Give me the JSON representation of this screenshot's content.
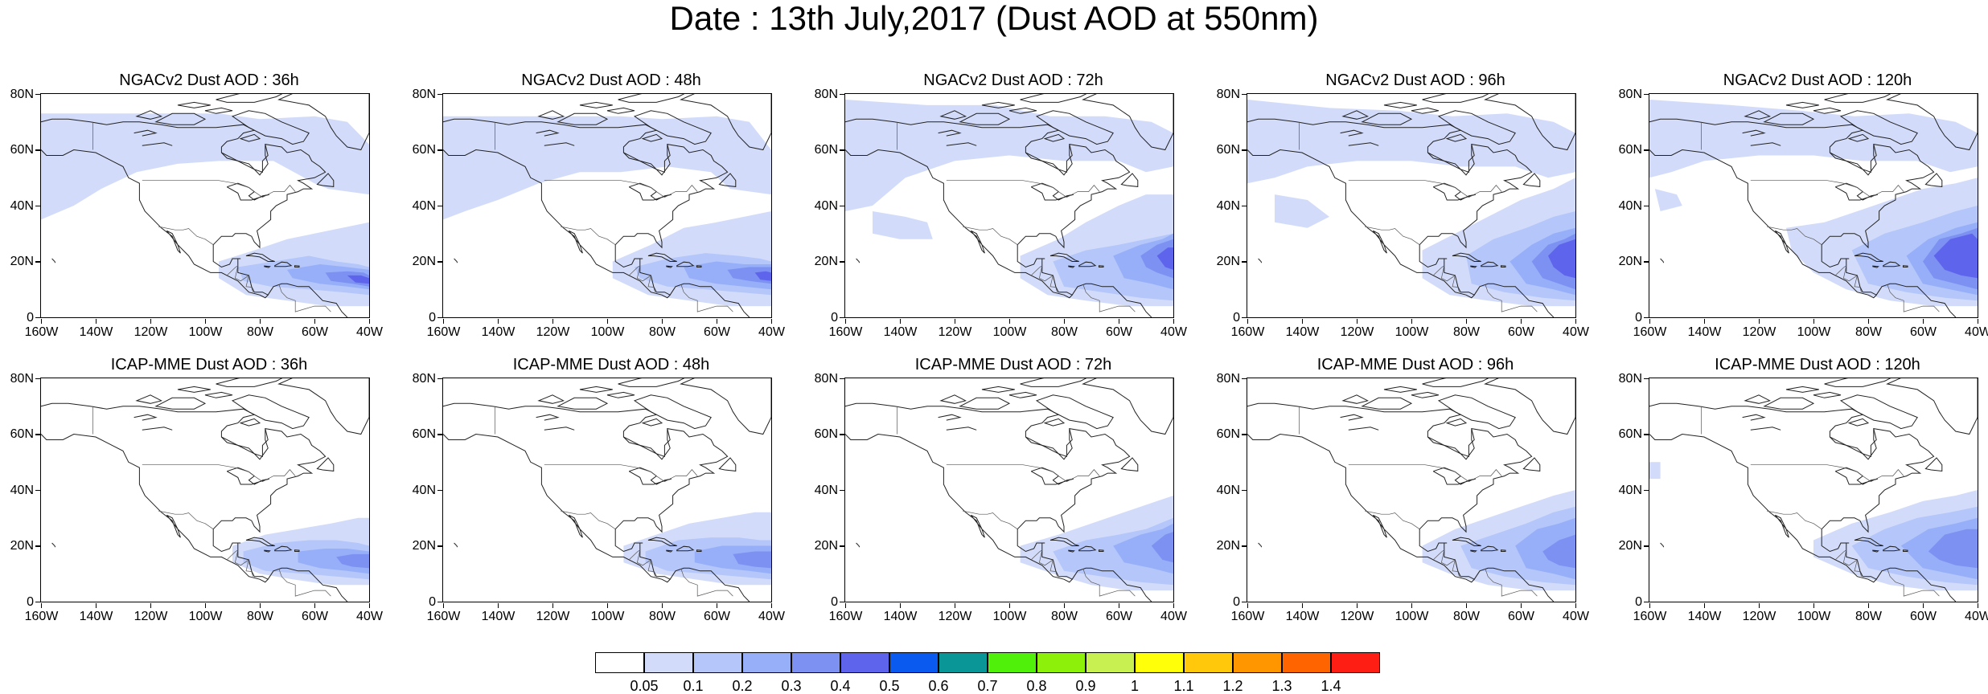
{
  "title": "Date : 13th July,2017 (Dust AOD at 550nm)",
  "axes": {
    "x_ticks": [
      "160W",
      "140W",
      "120W",
      "100W",
      "80W",
      "60W",
      "40W"
    ],
    "y_ticks": [
      "80N",
      "60N",
      "40N",
      "20N",
      "0"
    ],
    "lon_range": [
      -160,
      -40
    ],
    "lat_range": [
      0,
      80
    ]
  },
  "panels": [
    {
      "title": "NGACv2 Dust AOD : 36h",
      "model": "NGACv2",
      "hour": 36
    },
    {
      "title": "NGACv2 Dust AOD : 48h",
      "model": "NGACv2",
      "hour": 48
    },
    {
      "title": "NGACv2 Dust AOD : 72h",
      "model": "NGACv2",
      "hour": 72
    },
    {
      "title": "NGACv2 Dust AOD : 96h",
      "model": "NGACv2",
      "hour": 96
    },
    {
      "title": "NGACv2 Dust AOD : 120h",
      "model": "NGACv2",
      "hour": 120
    },
    {
      "title": "ICAP-MME Dust AOD : 36h",
      "model": "ICAP-MME",
      "hour": 36
    },
    {
      "title": "ICAP-MME Dust AOD : 48h",
      "model": "ICAP-MME",
      "hour": 48
    },
    {
      "title": "ICAP-MME Dust AOD : 72h",
      "model": "ICAP-MME",
      "hour": 72
    },
    {
      "title": "ICAP-MME Dust AOD : 96h",
      "model": "ICAP-MME",
      "hour": 96
    },
    {
      "title": "ICAP-MME Dust AOD : 120h",
      "model": "ICAP-MME",
      "hour": 120
    }
  ],
  "colorbar": {
    "labels": [
      "0.05",
      "0.1",
      "0.2",
      "0.3",
      "0.4",
      "0.5",
      "0.6",
      "0.7",
      "0.8",
      "0.9",
      "1",
      "1.1",
      "1.2",
      "1.3",
      "1.4"
    ],
    "colors": [
      "#ffffff",
      "#d2dcfa",
      "#b4c6fa",
      "#96aff8",
      "#7d91f2",
      "#5f64ec",
      "#0a5af0",
      "#0a9696",
      "#50f00a",
      "#8cf00a",
      "#c8f050",
      "#ffff0a",
      "#ffc80a",
      "#ff9600",
      "#ff6400",
      "#ff1e14"
    ]
  },
  "aod_colors": {
    "faint": "#d2dcfa",
    "light": "#b4c6fa",
    "medium": "#96aff8",
    "strong": "#7d91f2",
    "core": "#5f64ec"
  }
}
